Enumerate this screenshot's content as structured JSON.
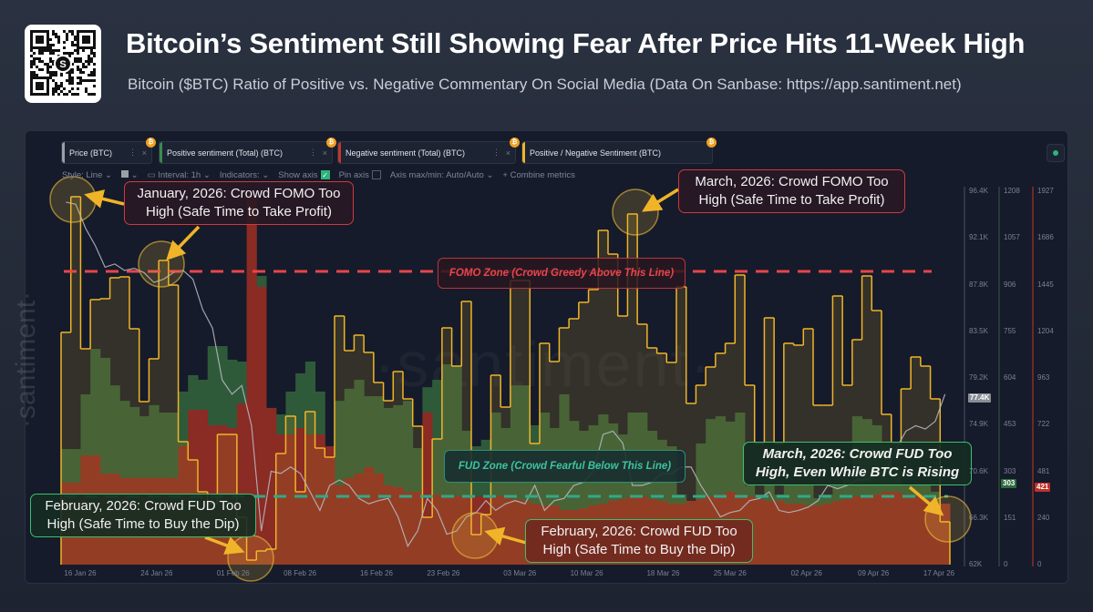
{
  "header": {
    "title": "Bitcoin’s Sentiment Still Showing Fear After Price Hits 11-Week High",
    "subtitle": "Bitcoin ($BTC) Ratio of Positive vs. Negative Commentary On Social Media (Data On Sanbase: https://app.santiment.net)",
    "qr_logo_text": "S"
  },
  "toolbar": {
    "tabs": [
      {
        "label": "Price (BTC)",
        "color": "#9aa0aa"
      },
      {
        "label": "Positive sentiment (Total) (BTC)",
        "color": "#3b8a4f"
      },
      {
        "label": "Negative sentiment (Total) (BTC)",
        "color": "#c0392b"
      },
      {
        "label": "Positive / Negative Sentiment (BTC)",
        "color": "#f0b429"
      }
    ],
    "more_glyph": "⋮",
    "close_glyph": "×",
    "btc_glyph": "₿",
    "style": "Style: Line",
    "interval": "Interval: 1h",
    "indicators": "Indicators:",
    "show_axis": "Show axis",
    "show_axis_checked": true,
    "pin_axis": "Pin axis",
    "pin_axis_checked": false,
    "axis_maxmin": "Axis max/min: Auto/Auto",
    "combine": "+ Combine metrics",
    "caret": "⌄"
  },
  "watermark": "·santiment·",
  "annotations": {
    "jan_fomo": "January, 2026: Crowd FOMO Too High (Safe Time to Take Profit)",
    "mar_fomo": "March, 2026: Crowd FOMO Too High (Safe Time to Take Profit)",
    "feb_fud_1": "February, 2026: Crowd FUD Too High (Safe Time to Buy the Dip)",
    "feb_fud_2": "February, 2026: Crowd FUD Too High (Safe Time to Buy the Dip)",
    "mar_fud": "March, 2026: Crowd FUD Too High, Even While BTC is Rising",
    "fomo_zone": "FOMO Zone (Crowd Greedy Above This Line)",
    "fud_zone": "FUD Zone (Crowd Fearful Below This Line)"
  },
  "chart_data": {
    "type": "bar",
    "x_range": [
      "2026-01-14",
      "2026-04-17"
    ],
    "x_ticks": [
      {
        "date": "2026-01-16",
        "label": "16 Jan 26"
      },
      {
        "date": "2026-01-24",
        "label": "24 Jan 26"
      },
      {
        "date": "2026-02-01",
        "label": "01 Feb 26"
      },
      {
        "date": "2026-02-08",
        "label": "08 Feb 26"
      },
      {
        "date": "2026-02-16",
        "label": "16 Feb 26"
      },
      {
        "date": "2026-02-23",
        "label": "23 Feb 26"
      },
      {
        "date": "2026-03-03",
        "label": "03 Mar 26"
      },
      {
        "date": "2026-03-10",
        "label": "10 Mar 26"
      },
      {
        "date": "2026-03-18",
        "label": "18 Mar 26"
      },
      {
        "date": "2026-03-25",
        "label": "25 Mar 26"
      },
      {
        "date": "2026-04-02",
        "label": "02 Apr 26"
      },
      {
        "date": "2026-04-09",
        "label": "09 Apr 26"
      },
      {
        "date": "2026-04-17",
        "label": "17 Apr 26"
      }
    ],
    "axes": {
      "price": {
        "ylim": [
          62,
          96.4
        ],
        "ticks": [
          "96.4K",
          "92.1K",
          "87.8K",
          "83.5K",
          "79.2K",
          "74.9K",
          "70.6K",
          "66.3K",
          "62K"
        ],
        "current": "77.4K",
        "color": "#9aa0aa"
      },
      "positive": {
        "ylim": [
          0,
          1208
        ],
        "ticks": [
          "1208",
          "1057",
          "906",
          "755",
          "604",
          "453",
          "303",
          "151",
          "0"
        ],
        "current": "303",
        "color": "#3b8a4f"
      },
      "negative": {
        "ylim": [
          0,
          1927
        ],
        "ticks": [
          "1927",
          "1686",
          "1445",
          "1204",
          "963",
          "722",
          "481",
          "240",
          "0"
        ],
        "current": "421",
        "color": "#c0392b"
      }
    },
    "ratio_ylim": [
      0,
      4.1
    ],
    "fomo_line": 3.22,
    "fud_line": 0.75,
    "grid": false,
    "series": [
      {
        "name": "Price (BTC)",
        "type": "line",
        "color": "#b9bcc4",
        "values": [
          95.4,
          95.2,
          93.0,
          91.4,
          89.4,
          89.7,
          89.1,
          89.3,
          88.9,
          88.0,
          88.3,
          88.9,
          89.1,
          88.3,
          85.5,
          83.8,
          79.0,
          77.7,
          78.5,
          74.8,
          65.1,
          70.6,
          70.4,
          71.0,
          70.4,
          68.7,
          67.0,
          69.3,
          69.8,
          69.3,
          68.1,
          67.6,
          67.9,
          68.1,
          66.4,
          63.7,
          65.1,
          68.1,
          67.0,
          64.8,
          65.1,
          66.4,
          66.8,
          67.9,
          67.0,
          67.6,
          67.9,
          67.6,
          69.3,
          67.0,
          67.9,
          68.1,
          69.3,
          69.6,
          70.6,
          74.0,
          74.3,
          73.2,
          69.3,
          69.3,
          69.6,
          70.4,
          70.4,
          71.0,
          71.0,
          69.3,
          67.9,
          66.4,
          66.8,
          67.0,
          67.9,
          68.1,
          68.7,
          67.0,
          66.8,
          67.0,
          67.3,
          67.9,
          69.3,
          69.0,
          69.3,
          69.8,
          69.8,
          70.4,
          70.6,
          72.7,
          74.3,
          74.8,
          74.5,
          75.2,
          77.7
        ]
      },
      {
        "name": "Positive sentiment (Total) (BTC)",
        "type": "bar",
        "color": "#2f5f3c",
        "values": [
          374,
          374,
          551,
          698,
          669,
          580,
          530,
          510,
          480,
          516,
          492,
          492,
          560,
          613,
          598,
          707,
          707,
          663,
          657,
          884,
          934,
          507,
          486,
          560,
          619,
          657,
          560,
          383,
          530,
          569,
          598,
          545,
          545,
          507,
          516,
          530,
          377,
          574,
          598,
          648,
          642,
          433,
          383,
          404,
          492,
          442,
          580,
          580,
          451,
          492,
          442,
          551,
          465,
          433,
          451,
          486,
          457,
          421,
          492,
          492,
          433,
          404,
          383,
          227,
          177,
          392,
          471,
          480,
          463,
          492,
          256,
          227,
          256,
          227,
          256,
          256,
          256,
          215,
          227,
          256,
          274,
          480,
          471,
          451,
          392,
          315,
          256,
          256,
          256,
          236,
          147
        ]
      },
      {
        "name": "Negative sentiment (Total) (BTC)",
        "type": "bar",
        "color": "#8e2c25",
        "values": [
          423,
          423,
          564,
          564,
          470,
          470,
          447,
          447,
          447,
          447,
          447,
          447,
          611,
          799,
          799,
          719,
          719,
          705,
          832,
          1904,
          1434,
          808,
          672,
          672,
          705,
          672,
          672,
          611,
          409,
          447,
          470,
          503,
          470,
          409,
          400,
          376,
          376,
          785,
          362,
          353,
          353,
          353,
          353,
          353,
          353,
          353,
          338,
          329,
          315,
          306,
          306,
          282,
          282,
          291,
          306,
          315,
          329,
          338,
          353,
          353,
          338,
          329,
          315,
          315,
          329,
          338,
          353,
          362,
          376,
          362,
          353,
          338,
          329,
          329,
          315,
          315,
          306,
          306,
          315,
          329,
          338,
          353,
          353,
          362,
          376,
          376,
          362,
          353,
          338,
          329,
          315
        ]
      },
      {
        "name": "Positive / Negative Sentiment (BTC)",
        "type": "step",
        "color": "#f0b429",
        "values": [
          2.55,
          4.04,
          2.37,
          2.91,
          2.92,
          3.15,
          3.16,
          2.59,
          1.79,
          2.26,
          3.34,
          3.07,
          1.35,
          1.15,
          0.8,
          0.67,
          1.43,
          1.43,
          0.52,
          0.05,
          0.15,
          0.17,
          1.22,
          1.63,
          0.8,
          1.68,
          1.28,
          1.18,
          2.73,
          2.35,
          2.52,
          2.33,
          2.0,
          1.8,
          2.12,
          1.82,
          1.52,
          0.52,
          1.38,
          2.6,
          2.18,
          2.89,
          0.33,
          0.55,
          2.08,
          1.73,
          3.12,
          3.12,
          1.33,
          2.43,
          2.23,
          2.6,
          2.7,
          2.88,
          3.02,
          3.67,
          3.41,
          2.73,
          3.85,
          2.64,
          2.38,
          2.32,
          2.22,
          3.05,
          1.77,
          1.97,
          2.17,
          2.32,
          2.43,
          3.18,
          1.97,
          1.33,
          2.71,
          1.33,
          2.43,
          2.41,
          2.59,
          1.75,
          1.75,
          2.95,
          1.97,
          2.47,
          3.17,
          2.79,
          1.65,
          1.33,
          1.93,
          2.28,
          2.18,
          1.82,
          0.47
        ]
      }
    ]
  }
}
